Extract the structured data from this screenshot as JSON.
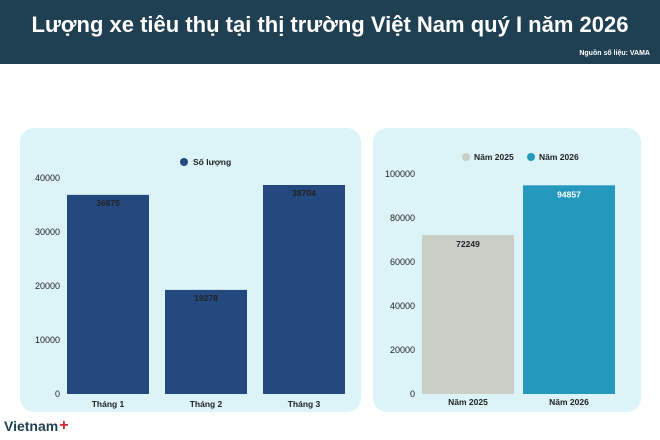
{
  "header": {
    "title": "Lượng xe tiêu thụ tại thị trường Việt Nam quý I năm 2026",
    "source": "Nguồn số liệu: VAMA"
  },
  "logo": {
    "text": "Vietnam",
    "mark": "+"
  },
  "colors": {
    "header_bg": "#1f3f52",
    "panel_bg": "#dcf3f7",
    "bar_monthly": "#23497e",
    "bar_2025": "#c9cfc7",
    "bar_2026": "#2599bd",
    "logo_accent": "#d7262d"
  },
  "chart_data": [
    {
      "type": "bar",
      "categories": [
        "Tháng 1",
        "Tháng 2",
        "Tháng 3"
      ],
      "series": [
        {
          "name": "Số lượng",
          "values": [
            36875,
            19278,
            38704
          ],
          "color": "#23497e"
        }
      ],
      "ylim": [
        0,
        40000
      ],
      "yticks": [
        0,
        10000,
        20000,
        30000,
        40000
      ],
      "legend": "top-center",
      "grid": false,
      "xlabel": "",
      "ylabel": ""
    },
    {
      "type": "bar",
      "categories": [
        "Năm 2025",
        "Năm 2026"
      ],
      "series": [
        {
          "name": "Năm 2025",
          "values": [
            72249,
            null
          ],
          "color": "#c9cfc7"
        },
        {
          "name": "Năm 2026",
          "values": [
            null,
            94857
          ],
          "color": "#2599bd"
        }
      ],
      "ylim": [
        0,
        100000
      ],
      "yticks": [
        0,
        20000,
        40000,
        60000,
        80000,
        100000
      ],
      "legend": "top-left",
      "grid": false,
      "xlabel": "",
      "ylabel": ""
    }
  ]
}
